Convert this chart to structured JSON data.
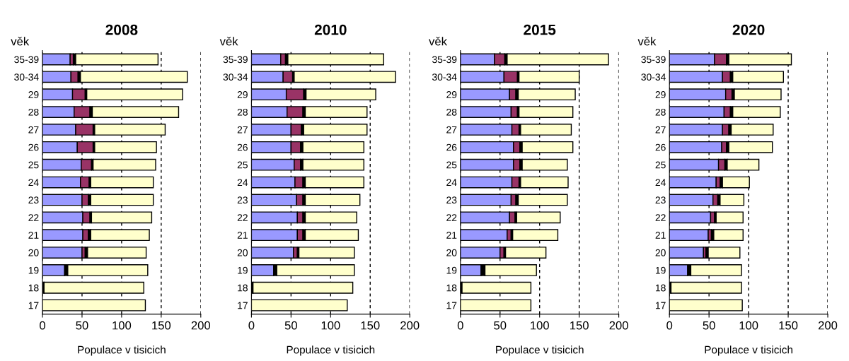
{
  "chart_data": [
    {
      "type": "bar",
      "orientation": "horizontal",
      "stacked": true,
      "title": "2008",
      "ylabel": "věk",
      "xlabel": "Populace v tisicich",
      "xlim": [
        0,
        200
      ],
      "xticks": [
        0,
        50,
        100,
        150,
        200
      ],
      "grid": "x",
      "categories": [
        "35-39",
        "30-34",
        "29",
        "28",
        "27",
        "26",
        "25",
        "24",
        "23",
        "22",
        "21",
        "20",
        "19",
        "18",
        "17"
      ],
      "series": [
        {
          "color": "#9999ff",
          "values": [
            35,
            36,
            38,
            40,
            42,
            44,
            49,
            48,
            50,
            51,
            51,
            50,
            28,
            0,
            0
          ]
        },
        {
          "color": "#993366",
          "values": [
            4,
            9,
            16,
            20,
            22,
            20,
            13,
            11,
            8,
            9,
            7,
            4,
            0,
            0,
            0
          ]
        },
        {
          "color": "#000000",
          "values": [
            3,
            3,
            2,
            3,
            2,
            2,
            2,
            2,
            3,
            2,
            3,
            3,
            4,
            2,
            0
          ]
        },
        {
          "color": "#ffffcc",
          "values": [
            104,
            135,
            121,
            109,
            89,
            78,
            79,
            79,
            79,
            76,
            74,
            74,
            101,
            126,
            130
          ]
        }
      ]
    },
    {
      "type": "bar",
      "orientation": "horizontal",
      "stacked": true,
      "title": "2010",
      "ylabel": "věk",
      "xlabel": "Populace v tisicich",
      "xlim": [
        0,
        200
      ],
      "xticks": [
        0,
        50,
        100,
        150,
        200
      ],
      "grid": "x",
      "categories": [
        "35-39",
        "30-34",
        "29",
        "28",
        "27",
        "26",
        "25",
        "24",
        "23",
        "22",
        "21",
        "20",
        "19",
        "18",
        "17"
      ],
      "series": [
        {
          "color": "#9999ff",
          "values": [
            37,
            40,
            44,
            45,
            50,
            50,
            54,
            55,
            57,
            58,
            58,
            53,
            28,
            0,
            0
          ]
        },
        {
          "color": "#993366",
          "values": [
            6,
            12,
            22,
            20,
            13,
            12,
            8,
            10,
            8,
            7,
            7,
            5,
            0,
            0,
            0
          ]
        },
        {
          "color": "#000000",
          "values": [
            3,
            2,
            3,
            3,
            3,
            3,
            3,
            3,
            3,
            3,
            3,
            2,
            4,
            2,
            0
          ]
        },
        {
          "color": "#ffffcc",
          "values": [
            121,
            128,
            88,
            78,
            80,
            77,
            77,
            74,
            69,
            65,
            67,
            70,
            98,
            126,
            121
          ]
        }
      ]
    },
    {
      "type": "bar",
      "orientation": "horizontal",
      "stacked": true,
      "title": "2015",
      "ylabel": "věk",
      "xlabel": "Populace v tisicich",
      "xlim": [
        0,
        200
      ],
      "xticks": [
        0,
        50,
        100,
        150,
        200
      ],
      "grid": "x",
      "categories": [
        "35-39",
        "30-34",
        "29",
        "28",
        "27",
        "26",
        "25",
        "24",
        "23",
        "22",
        "21",
        "20",
        "19",
        "18",
        "17"
      ],
      "series": [
        {
          "color": "#9999ff",
          "values": [
            43,
            55,
            62,
            64,
            65,
            67,
            67,
            65,
            64,
            62,
            59,
            50,
            26,
            0,
            0
          ]
        },
        {
          "color": "#993366",
          "values": [
            13,
            17,
            8,
            8,
            9,
            8,
            8,
            9,
            6,
            7,
            5,
            5,
            0,
            0,
            0
          ]
        },
        {
          "color": "#000000",
          "values": [
            3,
            2,
            3,
            2,
            2,
            3,
            3,
            2,
            3,
            2,
            2,
            2,
            5,
            2,
            0
          ]
        },
        {
          "color": "#ffffcc",
          "values": [
            128,
            76,
            72,
            68,
            64,
            64,
            57,
            60,
            62,
            55,
            57,
            51,
            65,
            87,
            89
          ]
        }
      ]
    },
    {
      "type": "bar",
      "orientation": "horizontal",
      "stacked": true,
      "title": "2020",
      "ylabel": "věk",
      "xlabel": "Populace v tisicich",
      "xlim": [
        0,
        200
      ],
      "xticks": [
        0,
        50,
        100,
        150,
        200
      ],
      "grid": "x",
      "categories": [
        "35-39",
        "30-34",
        "29",
        "28",
        "27",
        "26",
        "25",
        "24",
        "23",
        "22",
        "21",
        "20",
        "19",
        "18",
        "17"
      ],
      "series": [
        {
          "color": "#9999ff",
          "values": [
            57,
            67,
            71,
            69,
            67,
            66,
            62,
            59,
            55,
            52,
            49,
            43,
            23,
            0,
            0
          ]
        },
        {
          "color": "#993366",
          "values": [
            15,
            10,
            8,
            8,
            8,
            6,
            8,
            5,
            6,
            5,
            4,
            3,
            0,
            0,
            0
          ]
        },
        {
          "color": "#000000",
          "values": [
            3,
            3,
            3,
            3,
            3,
            3,
            3,
            3,
            3,
            2,
            3,
            3,
            4,
            2,
            0
          ]
        },
        {
          "color": "#ffffcc",
          "values": [
            79,
            64,
            59,
            60,
            53,
            55,
            40,
            34,
            30,
            34,
            37,
            40,
            64,
            89,
            92
          ]
        }
      ]
    }
  ]
}
